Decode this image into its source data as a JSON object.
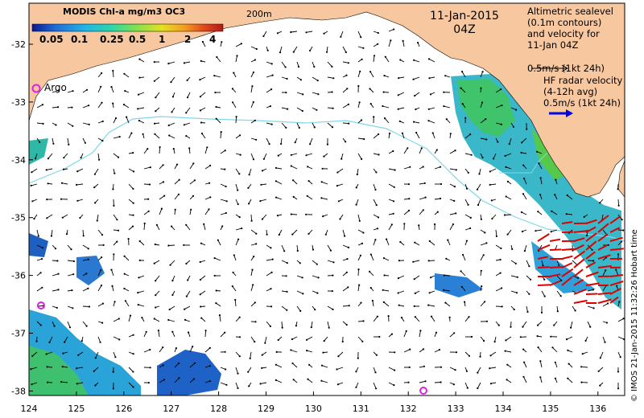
{
  "colorbar": {
    "title": "MODIS Chl-a mg/m3 OC3",
    "ticks": [
      "0.05",
      "0.1",
      "0.25",
      "0.5",
      "1",
      "2",
      "4"
    ]
  },
  "date": {
    "day": "11-Jan-2015",
    "time": "04Z"
  },
  "contour_label": "200m",
  "altimetry_legend": {
    "lines": [
      "Altimetric sealevel",
      "(0.1m contours)",
      "and velocity for",
      "11-Jan 04Z"
    ],
    "scale": "0.5m/s (1kt 24h)"
  },
  "hf_legend": {
    "lines": [
      "HF radar velocity",
      "(4-12h avg)"
    ],
    "scale": "0.5m/s (1kt 24h)"
  },
  "argo_label": "Argo",
  "credit": "© IMOS 21-Jan-2015 11:32:26 Hobart time",
  "axes": {
    "x_ticks": [
      "124",
      "125",
      "126",
      "127",
      "128",
      "129",
      "130",
      "131",
      "132",
      "133",
      "134",
      "135",
      "136"
    ],
    "y_ticks": [
      "-32",
      "-33",
      "-34",
      "-35",
      "-36",
      "-37",
      "-38"
    ]
  },
  "colors": {
    "land": "#f7c79f",
    "contour": "#7fd8e8",
    "altimetry_arrow": "#000000",
    "hf_arrow": "#e00000",
    "argo": "#e020e0",
    "colorbar": [
      "#0b1a8c",
      "#1f6bd8",
      "#23b6e6",
      "#2fd6a7",
      "#84e24a",
      "#e6e021",
      "#f59b21",
      "#e04a1a",
      "#b01a1a"
    ]
  }
}
